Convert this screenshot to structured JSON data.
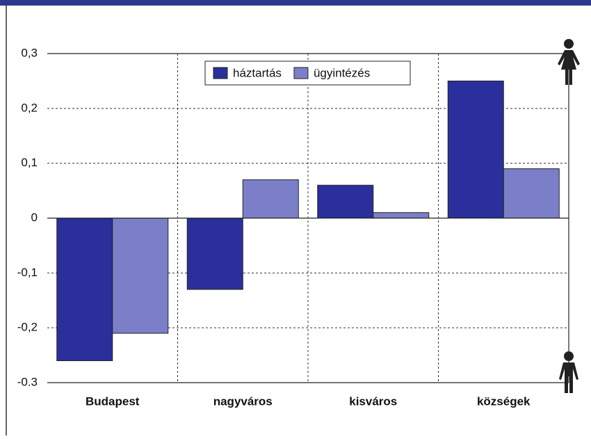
{
  "chart_data": {
    "type": "bar",
    "categories": [
      "Budapest",
      "nagyváros",
      "kisváros",
      "községek"
    ],
    "series": [
      {
        "name": "háztartás",
        "color": "#2b2f9b",
        "values": [
          -0.26,
          -0.13,
          0.06,
          0.25
        ]
      },
      {
        "name": "ügyintézés",
        "color": "#7b7fc8",
        "values": [
          -0.21,
          0.07,
          0.01,
          0.09
        ]
      }
    ],
    "ylim": [
      -0.3,
      0.3
    ],
    "yticks": [
      {
        "value": -0.3,
        "label": "-0.3"
      },
      {
        "value": -0.2,
        "label": "-0,2"
      },
      {
        "value": -0.1,
        "label": "-0,1"
      },
      0,
      {
        "value": 0.1,
        "label": "0,1"
      },
      {
        "value": 0.2,
        "label": "0,2"
      },
      {
        "value": 0.3,
        "label": "0,3"
      }
    ],
    "grid": true,
    "legend": "top"
  }
}
